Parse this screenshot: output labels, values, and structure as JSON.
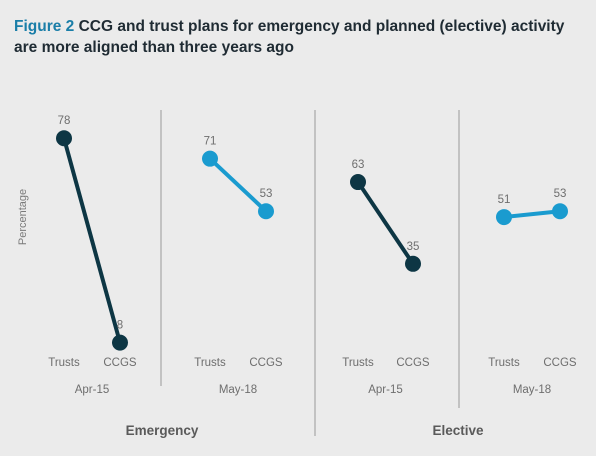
{
  "title": {
    "figure_label": "Figure 2",
    "text": "CCG and trust plans for emergency and planned (elective) activity are more aligned than three years ago"
  },
  "colors": {
    "dark": "#0d3644",
    "light": "#1a9bcf",
    "text_grey": "#6e6e6e",
    "divider": "#9a9a9a"
  },
  "chart_data": {
    "type": "line",
    "ylabel": "Percentage",
    "ylim": [
      0,
      100
    ],
    "groups": [
      "Emergency",
      "Elective"
    ],
    "panels": [
      {
        "group": "Emergency",
        "period": "Apr-15",
        "categories": [
          "Trusts",
          "CCGS"
        ],
        "values": [
          78,
          8
        ],
        "color": "dark"
      },
      {
        "group": "Emergency",
        "period": "May-18",
        "categories": [
          "Trusts",
          "CCGS"
        ],
        "values": [
          71,
          53
        ],
        "color": "light"
      },
      {
        "group": "Elective",
        "period": "Apr-15",
        "categories": [
          "Trusts",
          "CCGS"
        ],
        "values": [
          63,
          35
        ],
        "color": "dark"
      },
      {
        "group": "Elective",
        "period": "May-18",
        "categories": [
          "Trusts",
          "CCGS"
        ],
        "values": [
          51,
          53
        ],
        "color": "light"
      }
    ]
  }
}
